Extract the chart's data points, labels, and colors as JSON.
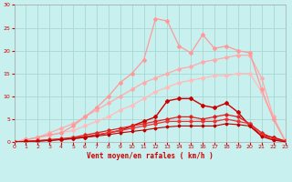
{
  "background_color": "#c8f0ee",
  "grid_color": "#a8d8d4",
  "xlabel": "Vent moyen/en rafales ( km/h )",
  "xlim": [
    0,
    23
  ],
  "ylim": [
    0,
    30
  ],
  "xticks": [
    0,
    1,
    2,
    3,
    4,
    5,
    6,
    7,
    8,
    9,
    10,
    11,
    12,
    13,
    14,
    15,
    16,
    17,
    18,
    19,
    20,
    21,
    22,
    23
  ],
  "yticks": [
    0,
    5,
    10,
    15,
    20,
    25,
    30
  ],
  "lines": [
    {
      "x": [
        0,
        1,
        2,
        3,
        4,
        5,
        6,
        7,
        8,
        9,
        10,
        11,
        12,
        13,
        14,
        15,
        16,
        17,
        18,
        19,
        20,
        21,
        22,
        23
      ],
      "y": [
        0,
        0.5,
        1.0,
        1.5,
        2.0,
        2.5,
        3.5,
        4.5,
        5.5,
        7.0,
        8.0,
        9.5,
        11.0,
        12.0,
        13.0,
        13.5,
        14.0,
        14.5,
        14.5,
        15.0,
        15.0,
        11.0,
        5.0,
        0.3
      ],
      "color": "#ffbbbb",
      "linewidth": 0.9,
      "marker": "D",
      "markersize": 2.0
    },
    {
      "x": [
        0,
        1,
        2,
        3,
        4,
        5,
        6,
        7,
        8,
        9,
        10,
        11,
        12,
        13,
        14,
        15,
        16,
        17,
        18,
        19,
        20,
        21,
        22,
        23
      ],
      "y": [
        0,
        0.5,
        1.0,
        2.0,
        3.0,
        4.0,
        5.5,
        7.0,
        8.5,
        10.0,
        11.5,
        13.0,
        14.0,
        15.0,
        16.0,
        16.5,
        17.5,
        18.0,
        18.5,
        19.0,
        19.0,
        14.0,
        5.5,
        0.3
      ],
      "color": "#ffaaaa",
      "linewidth": 0.9,
      "marker": "D",
      "markersize": 2.0
    },
    {
      "x": [
        0,
        1,
        2,
        3,
        4,
        5,
        6,
        7,
        8,
        9,
        10,
        11,
        12,
        13,
        14,
        15,
        16,
        17,
        18,
        19,
        20,
        21,
        22,
        23
      ],
      "y": [
        0,
        0.5,
        1.0,
        1.5,
        2.0,
        3.5,
        5.5,
        7.5,
        10.0,
        13.0,
        15.0,
        18.0,
        27.0,
        26.5,
        21.0,
        19.5,
        23.5,
        20.5,
        21.0,
        20.0,
        19.5,
        11.5,
        5.0,
        0.2
      ],
      "color": "#ff9999",
      "linewidth": 0.9,
      "marker": "D",
      "markersize": 2.0
    },
    {
      "x": [
        0,
        1,
        2,
        3,
        4,
        5,
        6,
        7,
        8,
        9,
        10,
        11,
        12,
        13,
        14,
        15,
        16,
        17,
        18,
        19,
        20,
        21,
        22,
        23
      ],
      "y": [
        0,
        0.1,
        0.2,
        0.4,
        0.6,
        0.8,
        1.0,
        1.5,
        2.0,
        2.5,
        3.5,
        4.5,
        5.5,
        9.0,
        9.5,
        9.5,
        8.0,
        7.5,
        8.5,
        6.5,
        3.5,
        1.5,
        1.0,
        0.2
      ],
      "color": "#cc0000",
      "linewidth": 1.0,
      "marker": "D",
      "markersize": 2.0
    },
    {
      "x": [
        0,
        1,
        2,
        3,
        4,
        5,
        6,
        7,
        8,
        9,
        10,
        11,
        12,
        13,
        14,
        15,
        16,
        17,
        18,
        19,
        20,
        21,
        22,
        23
      ],
      "y": [
        0,
        0.1,
        0.3,
        0.5,
        0.7,
        1.0,
        1.5,
        2.0,
        2.5,
        3.0,
        3.5,
        4.0,
        4.5,
        5.0,
        5.5,
        5.5,
        5.0,
        5.5,
        6.0,
        5.5,
        4.0,
        2.0,
        0.8,
        0.1
      ],
      "color": "#dd2222",
      "linewidth": 0.9,
      "marker": "D",
      "markersize": 1.8
    },
    {
      "x": [
        0,
        1,
        2,
        3,
        4,
        5,
        6,
        7,
        8,
        9,
        10,
        11,
        12,
        13,
        14,
        15,
        16,
        17,
        18,
        19,
        20,
        21,
        22,
        23
      ],
      "y": [
        0,
        0.1,
        0.2,
        0.4,
        0.6,
        0.9,
        1.2,
        1.6,
        2.0,
        2.5,
        3.0,
        3.5,
        4.0,
        4.5,
        4.5,
        4.5,
        4.5,
        4.5,
        5.0,
        4.5,
        4.0,
        1.5,
        0.5,
        0.1
      ],
      "color": "#ee3333",
      "linewidth": 0.9,
      "marker": "D",
      "markersize": 1.8
    },
    {
      "x": [
        0,
        1,
        2,
        3,
        4,
        5,
        6,
        7,
        8,
        9,
        10,
        11,
        12,
        13,
        14,
        15,
        16,
        17,
        18,
        19,
        20,
        21,
        22,
        23
      ],
      "y": [
        0,
        0.1,
        0.2,
        0.3,
        0.5,
        0.7,
        1.0,
        1.3,
        1.6,
        2.0,
        2.3,
        2.6,
        3.0,
        3.3,
        3.5,
        3.5,
        3.5,
        3.5,
        4.0,
        3.8,
        3.5,
        1.2,
        0.4,
        0.05
      ],
      "color": "#bb0000",
      "linewidth": 0.8,
      "marker": "D",
      "markersize": 1.5
    }
  ]
}
